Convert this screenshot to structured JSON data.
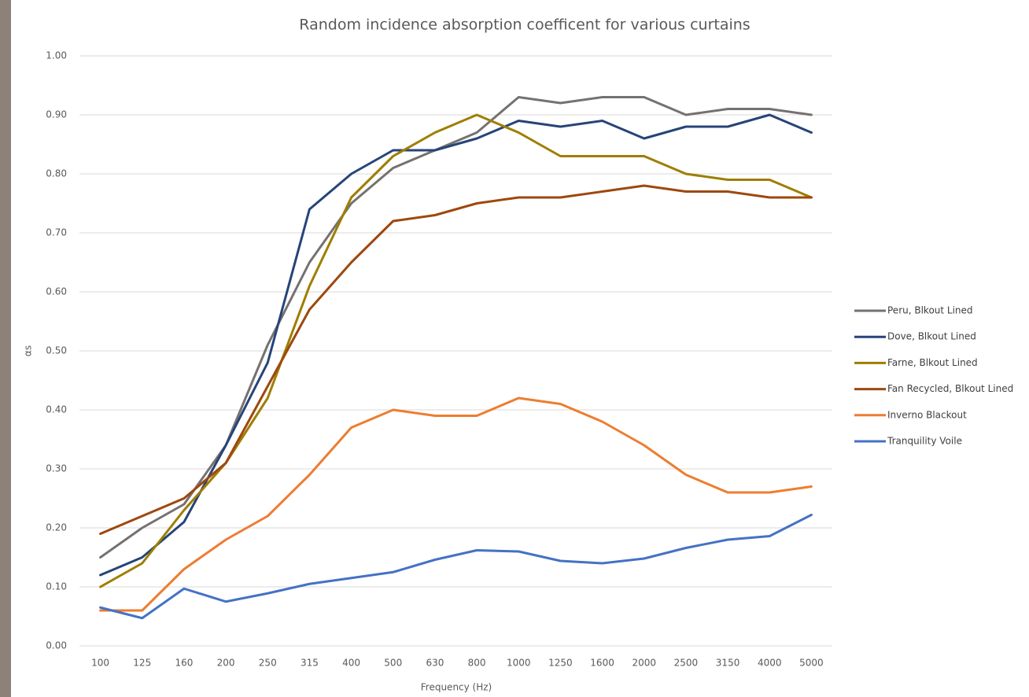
{
  "chart_data": {
    "type": "line",
    "title": "Random incidence absorption coefficent for various curtains",
    "x_label": "Frequency (Hz)",
    "y_label": "αs",
    "categories": [
      "100",
      "125",
      "160",
      "200",
      "250",
      "315",
      "400",
      "500",
      "630",
      "800",
      "1000",
      "1250",
      "1600",
      "2000",
      "2500",
      "3150",
      "4000",
      "5000"
    ],
    "ylim": [
      0,
      1
    ],
    "yticks": [
      {
        "value": 0,
        "label": "0.00"
      },
      {
        "value": 0.1,
        "label": "0.10"
      },
      {
        "value": 0.2,
        "label": "0.20"
      },
      {
        "value": 0.3,
        "label": "0.30"
      },
      {
        "value": 0.4,
        "label": "0.40"
      },
      {
        "value": 0.5,
        "label": "0.50"
      },
      {
        "value": 0.6,
        "label": "0.60"
      },
      {
        "value": 0.7,
        "label": "0.70"
      },
      {
        "value": 0.8,
        "label": "0.80"
      },
      {
        "value": 0.9,
        "label": "0.90"
      },
      {
        "value": 1,
        "label": "1.00"
      }
    ],
    "grid": true,
    "legend": "right",
    "series": [
      {
        "name": "Peru, Blkout Lined",
        "color": "#767171",
        "values": [
          0.15,
          0.2,
          0.24,
          0.34,
          0.51,
          0.65,
          0.75,
          0.81,
          0.84,
          0.87,
          0.93,
          0.92,
          0.93,
          0.93,
          0.9,
          0.91,
          0.91,
          0.9
        ]
      },
      {
        "name": "Dove, Blkout Lined",
        "color": "#264478",
        "values": [
          0.12,
          0.15,
          0.21,
          0.34,
          0.48,
          0.74,
          0.8,
          0.84,
          0.84,
          0.86,
          0.89,
          0.88,
          0.89,
          0.86,
          0.88,
          0.88,
          0.9,
          0.87
        ]
      },
      {
        "name": "Farne, Blkout Lined",
        "color": "#9e7e00",
        "values": [
          0.1,
          0.14,
          0.23,
          0.31,
          0.42,
          0.61,
          0.76,
          0.83,
          0.87,
          0.9,
          0.87,
          0.83,
          0.83,
          0.83,
          0.8,
          0.79,
          0.79,
          0.76
        ]
      },
      {
        "name": "Fan Recycled, Blkout Lined",
        "color": "#9e480e",
        "values": [
          0.19,
          0.22,
          0.25,
          0.31,
          0.44,
          0.57,
          0.65,
          0.72,
          0.73,
          0.75,
          0.76,
          0.76,
          0.77,
          0.78,
          0.77,
          0.77,
          0.76,
          0.76
        ]
      },
      {
        "name": "Inverno Blackout",
        "color": "#ed7d31",
        "values": [
          0.06,
          0.06,
          0.13,
          0.18,
          0.22,
          0.29,
          0.37,
          0.4,
          0.39,
          0.39,
          0.42,
          0.41,
          0.38,
          0.34,
          0.29,
          0.26,
          0.26,
          0.27
        ]
      },
      {
        "name": "Tranquility Voile",
        "color": "#4472c4",
        "values": [
          0.065,
          0.047,
          0.097,
          0.075,
          0.089,
          0.105,
          0.115,
          0.125,
          0.146,
          0.162,
          0.16,
          0.144,
          0.14,
          0.148,
          0.166,
          0.18,
          0.186,
          0.222
        ]
      }
    ]
  }
}
